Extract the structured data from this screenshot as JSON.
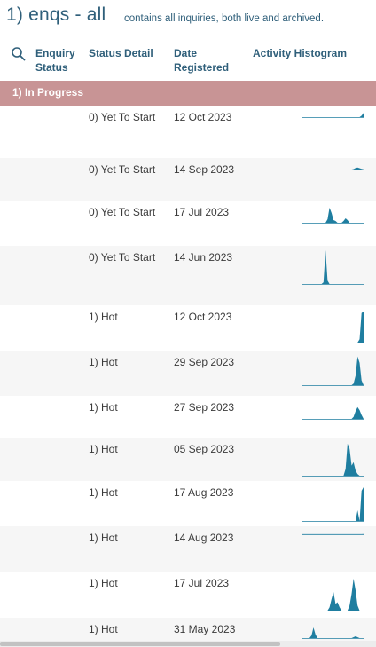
{
  "header": {
    "title": "1) enqs - all",
    "subtitle": "contains all inquiries, both live and archived."
  },
  "columns": {
    "enquiry_status": "Enquiry Status",
    "status_detail": "Status Detail",
    "date_registered": "Date Registered",
    "activity_histogram": "Activity Histogram"
  },
  "group": {
    "label": "1) In Progress"
  },
  "rows": [
    {
      "status": "0) Yet To Start",
      "date": "12 Oct 2023",
      "histogram": [
        0,
        0,
        0,
        0,
        0,
        0,
        0,
        0,
        0,
        0,
        0,
        0,
        0,
        0,
        0,
        0,
        0,
        0,
        0,
        0,
        0,
        0,
        0,
        0,
        0,
        0,
        0,
        0,
        0,
        0,
        0.2,
        0.6
      ]
    },
    {
      "status": "0) Yet To Start",
      "date": "14 Sep 2023",
      "histogram": [
        0,
        0,
        0,
        0,
        0,
        0,
        0,
        0,
        0,
        0,
        0,
        0,
        0,
        0,
        0,
        0,
        0,
        0,
        0,
        0,
        0,
        0,
        0,
        0,
        0,
        0,
        0.1,
        0.35,
        0.45,
        0.3,
        0.15,
        0.05
      ]
    },
    {
      "status": "0) Yet To Start",
      "date": "17 Jul 2023",
      "histogram": [
        0,
        0,
        0,
        0,
        0,
        0,
        0,
        0,
        0,
        0,
        0,
        0,
        0,
        0.2,
        0.85,
        0.55,
        0.15,
        0.1,
        0,
        0,
        0,
        0.1,
        0.25,
        0.15,
        0,
        0,
        0,
        0,
        0,
        0,
        0,
        0
      ]
    },
    {
      "status": "0) Yet To Start",
      "date": "14 Jun 2023",
      "histogram": [
        0,
        0,
        0,
        0,
        0,
        0,
        0,
        0,
        0,
        0,
        0,
        0.05,
        1,
        0.1,
        0,
        0,
        0,
        0,
        0,
        0,
        0,
        0,
        0,
        0,
        0,
        0,
        0,
        0,
        0,
        0,
        0,
        0
      ]
    },
    {
      "status": "1) Hot",
      "date": "12 Oct 2023",
      "histogram": [
        0,
        0,
        0,
        0,
        0,
        0,
        0,
        0,
        0,
        0,
        0,
        0,
        0,
        0,
        0,
        0,
        0,
        0,
        0,
        0,
        0,
        0,
        0,
        0,
        0,
        0,
        0,
        0,
        0,
        0.1,
        0.9,
        0.95
      ]
    },
    {
      "status": "1) Hot",
      "date": "29 Sep 2023",
      "histogram": [
        0,
        0,
        0,
        0,
        0,
        0,
        0,
        0,
        0,
        0,
        0,
        0,
        0,
        0,
        0,
        0,
        0,
        0,
        0,
        0,
        0,
        0,
        0,
        0,
        0,
        0,
        0.05,
        0.3,
        0.9,
        0.7,
        0.15,
        0
      ]
    },
    {
      "status": "1) Hot",
      "date": "27 Sep 2023",
      "histogram": [
        0,
        0,
        0,
        0,
        0,
        0,
        0,
        0,
        0,
        0,
        0,
        0,
        0,
        0,
        0,
        0,
        0,
        0,
        0,
        0,
        0,
        0,
        0,
        0,
        0,
        0,
        0.1,
        0.4,
        0.6,
        0.45,
        0.2,
        0
      ]
    },
    {
      "status": "1) Hot",
      "date": "05 Sep 2023",
      "histogram": [
        0,
        0,
        0,
        0,
        0,
        0,
        0,
        0,
        0,
        0,
        0,
        0,
        0,
        0,
        0,
        0,
        0,
        0,
        0,
        0,
        0,
        0,
        0.2,
        0.95,
        0.8,
        0.3,
        0.4,
        0.15,
        0.05,
        0,
        0,
        0
      ]
    },
    {
      "status": "1) Hot",
      "date": "17 Aug 2023",
      "histogram": [
        0,
        0,
        0,
        0,
        0,
        0,
        0,
        0,
        0,
        0,
        0,
        0,
        0,
        0,
        0,
        0,
        0,
        0,
        0,
        0,
        0,
        0,
        0,
        0,
        0,
        0,
        0,
        0,
        0.3,
        0,
        0.85,
        0.95
      ]
    },
    {
      "status": "1) Hot",
      "date": "14 Aug 2023",
      "histogram": [
        0.05,
        0.05,
        0.05,
        0.05,
        0.05,
        0.05,
        0.05,
        0.05,
        0.05,
        0.05,
        0.05,
        0.05,
        0.05,
        0.05,
        0.05,
        0.05,
        0.05,
        0.05,
        0.05,
        0.05,
        0.05,
        0.05,
        0.05,
        0.05,
        0.05,
        0.05,
        0.05,
        0.05,
        0.05,
        0.05,
        0.05,
        0.1
      ]
    },
    {
      "status": "1) Hot",
      "date": "17 Jul 2023",
      "histogram": [
        0,
        0,
        0,
        0,
        0,
        0,
        0,
        0,
        0,
        0,
        0,
        0,
        0,
        0,
        0.1,
        0.35,
        0.55,
        0.2,
        0.25,
        0.1,
        0,
        0,
        0,
        0,
        0.15,
        0.5,
        0.95,
        0.6,
        0.15,
        0,
        0,
        0
      ]
    },
    {
      "status": "1) Hot",
      "date": "31 May 2023",
      "histogram": [
        0,
        0,
        0,
        0,
        0,
        0.15,
        0.6,
        0.2,
        0,
        0,
        0,
        0,
        0,
        0,
        0,
        0,
        0,
        0,
        0,
        0,
        0,
        0,
        0,
        0,
        0,
        0,
        0.05,
        0.1,
        0.05,
        0,
        0,
        0
      ]
    }
  ],
  "colors": {
    "histogram_fill": "#1f7ea0",
    "group_header_bg": "#c89495",
    "title_text": "#2f5f7a"
  },
  "icons": {
    "search": "search-icon"
  }
}
